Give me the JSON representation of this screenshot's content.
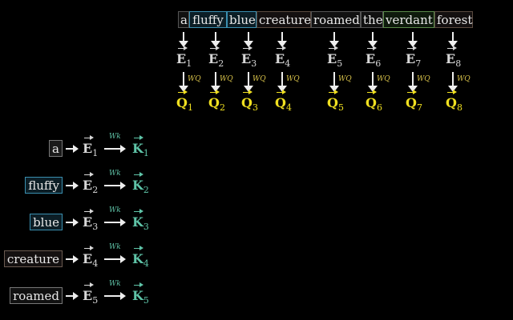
{
  "top_tokens": [
    {
      "text": "a",
      "border": "#555555",
      "bg": "#111111"
    },
    {
      "text": "fluffy",
      "border": "#3a8fb0",
      "bg": "#0c1e26"
    },
    {
      "text": "blue",
      "border": "#3a8fb0",
      "bg": "#0c1e26"
    },
    {
      "text": "creature",
      "border": "#5a4a40",
      "bg": "#141010"
    },
    {
      "text": "roamed",
      "border": "#555555",
      "bg": "#111111"
    },
    {
      "text": "the",
      "border": "#555555",
      "bg": "#111111"
    },
    {
      "text": "verdant",
      "border": "#5a8a4a",
      "bg": "#0e1a0c"
    },
    {
      "text": "forest",
      "border": "#5a4a40",
      "bg": "#141010"
    }
  ],
  "embedding_symbol": "E",
  "query_symbol": "Q",
  "key_symbol": "K",
  "query_matrix_label": "WQ",
  "key_matrix_label": "Wk",
  "indices": [
    "1",
    "2",
    "3",
    "4",
    "5",
    "6",
    "7",
    "8"
  ],
  "left_tokens": [
    {
      "text": "a",
      "border": "#777777",
      "bg": "#1a1a1a"
    },
    {
      "text": "fluffy",
      "border": "#3a8fb0",
      "bg": "#0c1e26"
    },
    {
      "text": "blue",
      "border": "#3a8fb0",
      "bg": "#0c1e26"
    },
    {
      "text": "creature",
      "border": "#6a5a50",
      "bg": "#141010"
    },
    {
      "text": "roamed",
      "border": "#777777",
      "bg": "#111111"
    }
  ],
  "colors": {
    "embedding": "#d8d8d8",
    "query": "#f0e020",
    "key": "#5fc4a8"
  }
}
